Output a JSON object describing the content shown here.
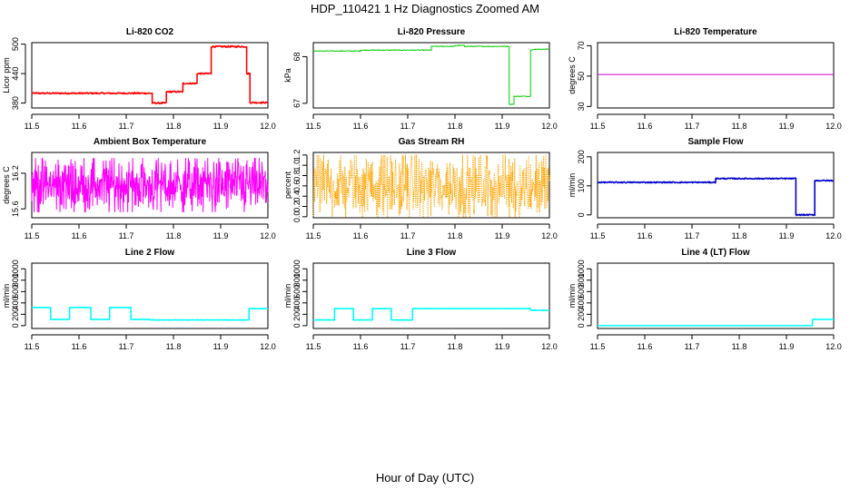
{
  "figure": {
    "title": "HDP_110421  1 Hz Diagnostics Zoomed AM",
    "xlabel": "Hour of Day (UTC)"
  },
  "chart_data": [
    {
      "type": "line",
      "title": "Li-820 CO2",
      "ylabel": "Licor ppm",
      "xlim": [
        11.5,
        12.0
      ],
      "xticks": [
        11.5,
        11.6,
        11.7,
        11.8,
        11.9,
        12.0
      ],
      "ylim": [
        370,
        503
      ],
      "yticks": [
        380,
        440,
        500
      ],
      "color": "#ff0000",
      "noise": 1.5,
      "lw": 1.6,
      "segments": [
        [
          11.5,
          11.755,
          400
        ],
        [
          11.755,
          11.785,
          380
        ],
        [
          11.785,
          11.82,
          403
        ],
        [
          11.82,
          11.85,
          420
        ],
        [
          11.85,
          11.88,
          440
        ],
        [
          11.88,
          11.955,
          495
        ],
        [
          11.955,
          11.962,
          440
        ],
        [
          11.962,
          12.0,
          381
        ]
      ]
    },
    {
      "type": "line",
      "title": "Li-820 Pressure",
      "ylabel": "kPa",
      "xlim": [
        11.5,
        12.0
      ],
      "xticks": [
        11.5,
        11.6,
        11.7,
        11.8,
        11.9,
        12.0
      ],
      "ylim": [
        66.9,
        68.3
      ],
      "yticks": [
        67.0,
        68.0
      ],
      "color": "#00cc00",
      "noise": 0.008,
      "lw": 1.0,
      "segments": [
        [
          11.5,
          11.6,
          68.12
        ],
        [
          11.6,
          11.75,
          68.14
        ],
        [
          11.75,
          11.8,
          68.22
        ],
        [
          11.8,
          11.82,
          68.24
        ],
        [
          11.82,
          11.915,
          68.22
        ],
        [
          11.915,
          11.925,
          66.98
        ],
        [
          11.925,
          11.96,
          67.15
        ],
        [
          11.96,
          11.97,
          68.15
        ],
        [
          11.97,
          12.0,
          68.16
        ]
      ]
    },
    {
      "type": "line",
      "title": "Li-820 Temperature",
      "ylabel": "degrees C",
      "xlim": [
        11.5,
        12.0
      ],
      "xticks": [
        11.5,
        11.6,
        11.7,
        11.8,
        11.9,
        12.0
      ],
      "ylim": [
        29,
        72
      ],
      "yticks": [
        30,
        50,
        70
      ],
      "color": "#cc00cc",
      "noise": 0,
      "lw": 1.0,
      "segments": [
        [
          11.5,
          12.0,
          51
        ]
      ]
    },
    {
      "type": "line",
      "title": "Ambient Box Temperature",
      "ylabel": "degrees C",
      "xlim": [
        11.5,
        12.0
      ],
      "xticks": [
        11.5,
        11.6,
        11.7,
        11.8,
        11.9,
        12.0
      ],
      "ylim": [
        15.45,
        16.55
      ],
      "yticks": [
        15.6,
        16.2
      ],
      "color": "#ff00ff",
      "noise": 0,
      "lw": 1.0,
      "random": [
        15.55,
        16.45
      ],
      "segments": []
    },
    {
      "type": "line",
      "title": "Gas Stream RH",
      "ylabel": "percent",
      "xlim": [
        11.5,
        12.0
      ],
      "xticks": [
        11.5,
        11.6,
        11.7,
        11.8,
        11.9,
        12.0
      ],
      "ylim": [
        -0.02,
        1.25
      ],
      "yticks": [
        0.0,
        0.2,
        0.4,
        0.6,
        0.8,
        1.0,
        1.2
      ],
      "color": "#ffa500",
      "noise": 0,
      "lw": 1.0,
      "random": [
        0.0,
        1.2
      ],
      "dotted": true,
      "segments": []
    },
    {
      "type": "line",
      "title": "Sample Flow",
      "ylabel": "ml/min",
      "xlim": [
        11.5,
        12.0
      ],
      "xticks": [
        11.5,
        11.6,
        11.7,
        11.8,
        11.9,
        12.0
      ],
      "ylim": [
        -10,
        215
      ],
      "yticks": [
        0,
        100,
        200
      ],
      "color": "#0000cc",
      "noise": 2,
      "lw": 1.6,
      "segments": [
        [
          11.5,
          11.75,
          112
        ],
        [
          11.75,
          11.92,
          125
        ],
        [
          11.92,
          11.96,
          0
        ],
        [
          11.96,
          12.0,
          118
        ]
      ]
    },
    {
      "type": "line",
      "title": "Line 2 Flow",
      "ylabel": "ml/min",
      "xlim": [
        11.5,
        12.0
      ],
      "xticks": [
        11.5,
        11.6,
        11.7,
        11.8,
        11.9,
        12.0
      ],
      "ylim": [
        -50,
        1100
      ],
      "yticks": [
        0,
        200,
        400,
        600,
        800,
        1000
      ],
      "color": "#00ffff",
      "noise": 3,
      "lw": 1.6,
      "segments": [
        [
          11.5,
          11.54,
          320
        ],
        [
          11.54,
          11.58,
          110
        ],
        [
          11.58,
          11.625,
          320
        ],
        [
          11.625,
          11.665,
          110
        ],
        [
          11.665,
          11.71,
          320
        ],
        [
          11.71,
          11.75,
          110
        ],
        [
          11.75,
          11.96,
          100
        ],
        [
          11.96,
          12.0,
          300
        ]
      ]
    },
    {
      "type": "line",
      "title": "Line 3 Flow",
      "ylabel": "ml/min",
      "xlim": [
        11.5,
        12.0
      ],
      "xticks": [
        11.5,
        11.6,
        11.7,
        11.8,
        11.9,
        12.0
      ],
      "ylim": [
        -50,
        1100
      ],
      "yticks": [
        0,
        200,
        400,
        600,
        800,
        1000
      ],
      "color": "#00ffff",
      "noise": 3,
      "lw": 1.6,
      "segments": [
        [
          11.5,
          11.545,
          100
        ],
        [
          11.545,
          11.585,
          300
        ],
        [
          11.585,
          11.625,
          100
        ],
        [
          11.625,
          11.665,
          300
        ],
        [
          11.665,
          11.71,
          100
        ],
        [
          11.71,
          11.96,
          300
        ],
        [
          11.96,
          12.0,
          270
        ]
      ]
    },
    {
      "type": "line",
      "title": "Line 4 (LT) Flow",
      "ylabel": "ml/min",
      "xlim": [
        11.5,
        12.0
      ],
      "xticks": [
        11.5,
        11.6,
        11.7,
        11.8,
        11.9,
        12.0
      ],
      "ylim": [
        -50,
        1100
      ],
      "yticks": [
        0,
        200,
        400,
        600,
        800,
        1000
      ],
      "color": "#00ffff",
      "noise": 0,
      "lw": 1.6,
      "segments": [
        [
          11.5,
          11.955,
          0
        ],
        [
          11.955,
          12.0,
          110
        ]
      ]
    }
  ]
}
